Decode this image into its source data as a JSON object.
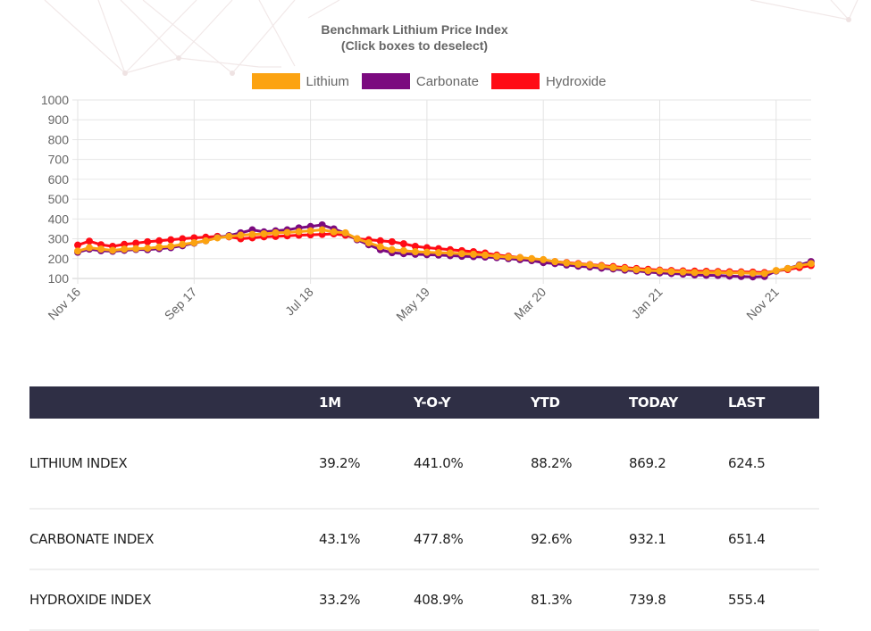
{
  "chart_data": {
    "type": "line",
    "title": "Benchmark Lithium Price Index",
    "subtitle": "(Click boxes to deselect)",
    "xlabel": "",
    "ylabel": "",
    "ylim": [
      100,
      1000
    ],
    "yticks": [
      1000,
      900,
      800,
      700,
      600,
      500,
      400,
      300,
      200,
      100
    ],
    "xtick_labels": [
      "Nov 16",
      "Sep 17",
      "Jul 18",
      "May 19",
      "Mar 20",
      "Jan 21",
      "Nov 21"
    ],
    "xtick_index": [
      0,
      10,
      20,
      30,
      40,
      50,
      60
    ],
    "grid": true,
    "legend_position": "top-center",
    "x": [
      "Nov 16",
      "Dec 16",
      "Jan 17",
      "Feb 17",
      "Mar 17",
      "Apr 17",
      "May 17",
      "Jun 17",
      "Jul 17",
      "Aug 17",
      "Sep 17",
      "Oct 17",
      "Nov 17",
      "Dec 17",
      "Jan 18",
      "Feb 18",
      "Mar 18",
      "Apr 18",
      "May 18",
      "Jun 18",
      "Jul 18",
      "Aug 18",
      "Sep 18",
      "Oct 18",
      "Nov 18",
      "Dec 18",
      "Jan 19",
      "Feb 19",
      "Mar 19",
      "Apr 19",
      "May 19",
      "Jun 19",
      "Jul 19",
      "Aug 19",
      "Sep 19",
      "Oct 19",
      "Nov 19",
      "Dec 19",
      "Jan 20",
      "Feb 20",
      "Mar 20",
      "Apr 20",
      "May 20",
      "Jun 20",
      "Jul 20",
      "Aug 20",
      "Sep 20",
      "Oct 20",
      "Nov 20",
      "Dec 20",
      "Jan 21",
      "Feb 21",
      "Mar 21",
      "Apr 21",
      "May 21",
      "Jun 21",
      "Jul 21",
      "Aug 21",
      "Sep 21",
      "Oct 21",
      "Nov 21",
      "Dec 21",
      "Jan 22",
      "Feb 22"
    ],
    "series": [
      {
        "name": "Lithium",
        "color": "#fca311",
        "values": [
          238,
          255,
          248,
          242,
          248,
          250,
          252,
          258,
          262,
          272,
          280,
          290,
          305,
          312,
          318,
          322,
          325,
          330,
          332,
          336,
          340,
          345,
          335,
          330,
          300,
          280,
          260,
          245,
          240,
          235,
          232,
          230,
          228,
          225,
          222,
          218,
          212,
          208,
          205,
          200,
          195,
          185,
          178,
          172,
          168,
          162,
          155,
          150,
          145,
          140,
          138,
          135,
          133,
          130,
          130,
          130,
          128,
          128,
          126,
          125,
          140,
          150,
          165,
          175
        ]
      },
      {
        "name": "Carbonate",
        "color": "#7b0a7f",
        "values": [
          232,
          248,
          240,
          237,
          242,
          246,
          245,
          250,
          255,
          265,
          278,
          290,
          307,
          316,
          330,
          345,
          335,
          340,
          345,
          355,
          362,
          370,
          350,
          328,
          295,
          270,
          245,
          230,
          225,
          222,
          220,
          218,
          215,
          212,
          210,
          208,
          205,
          200,
          195,
          190,
          180,
          175,
          168,
          162,
          158,
          152,
          148,
          142,
          138,
          132,
          128,
          125,
          122,
          118,
          116,
          115,
          112,
          110,
          108,
          110,
          138,
          150,
          168,
          185
        ]
      },
      {
        "name": "Hydroxide",
        "color": "#ff0b15",
        "values": [
          268,
          288,
          270,
          262,
          272,
          278,
          285,
          290,
          295,
          300,
          305,
          308,
          312,
          310,
          300,
          305,
          310,
          312,
          315,
          318,
          320,
          322,
          325,
          318,
          300,
          295,
          290,
          285,
          275,
          262,
          255,
          250,
          245,
          240,
          235,
          228,
          218,
          212,
          205,
          198,
          190,
          185,
          180,
          175,
          170,
          165,
          160,
          155,
          150,
          146,
          142,
          140,
          138,
          137,
          136,
          135,
          134,
          133,
          132,
          130,
          138,
          145,
          155,
          165
        ]
      }
    ]
  },
  "chart_tail": {
    "note_values_continue": true
  },
  "table": {
    "headers": [
      "",
      "1M",
      "Y-O-Y",
      "YTD",
      "TODAY",
      "LAST"
    ],
    "rows": [
      {
        "name": "LITHIUM INDEX",
        "m1": "39.2%",
        "yoy": "441.0%",
        "ytd": "88.2%",
        "today": "869.2",
        "last": "624.5"
      },
      {
        "name": "CARBONATE INDEX",
        "m1": "43.1%",
        "yoy": "477.8%",
        "ytd": "92.6%",
        "today": "932.1",
        "last": "651.4"
      },
      {
        "name": "HYDROXIDE INDEX",
        "m1": "33.2%",
        "yoy": "408.9%",
        "ytd": "81.3%",
        "today": "739.8",
        "last": "555.4"
      }
    ]
  }
}
